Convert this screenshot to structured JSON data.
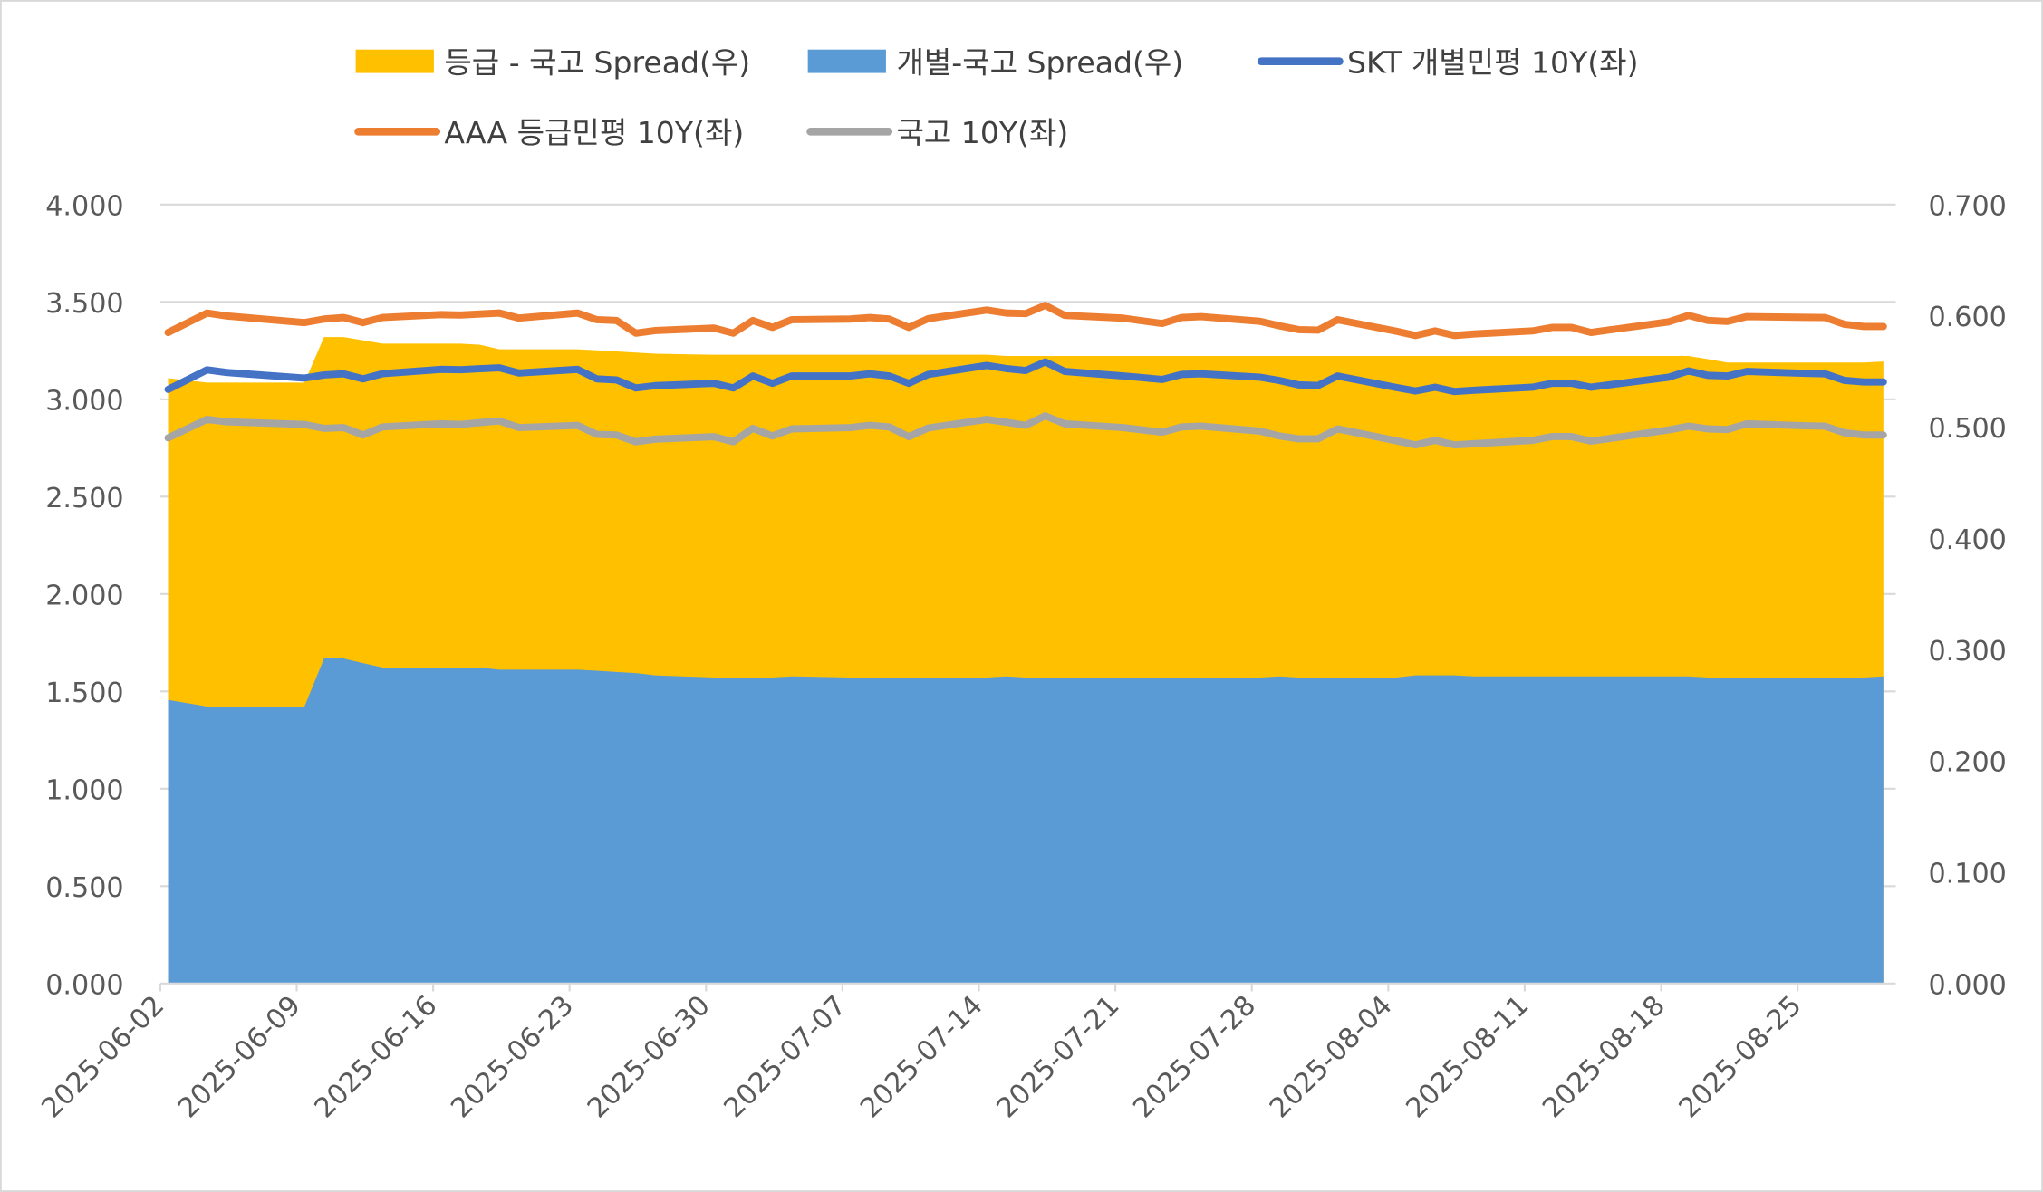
{
  "chart_data": {
    "type": "line+area",
    "title": "",
    "xlabel": "",
    "ylabel_left": "",
    "ylabel_right": "",
    "legend_position": "top",
    "grid": true,
    "y_left": {
      "range": [
        0,
        4
      ],
      "ticks": [
        "0.000",
        "0.500",
        "1.000",
        "1.500",
        "2.000",
        "2.500",
        "3.000",
        "3.500",
        "4.000"
      ]
    },
    "y_right": {
      "range": [
        0,
        0.7
      ],
      "ticks": [
        "0.000",
        "0.100",
        "0.200",
        "0.300",
        "0.400",
        "0.500",
        "0.600",
        "0.700"
      ]
    },
    "x_ticks": [
      "2025-06-02",
      "2025-06-09",
      "2025-06-16",
      "2025-06-23",
      "2025-06-30",
      "2025-07-07",
      "2025-07-14",
      "2025-07-21",
      "2025-07-28",
      "2025-08-04",
      "2025-08-11",
      "2025-08-18",
      "2025-08-25"
    ],
    "dates": [
      "2025-06-02",
      "2025-06-04",
      "2025-06-05",
      "2025-06-09",
      "2025-06-10",
      "2025-06-11",
      "2025-06-12",
      "2025-06-13",
      "2025-06-16",
      "2025-06-17",
      "2025-06-18",
      "2025-06-19",
      "2025-06-20",
      "2025-06-23",
      "2025-06-24",
      "2025-06-25",
      "2025-06-26",
      "2025-06-27",
      "2025-06-30",
      "2025-07-01",
      "2025-07-02",
      "2025-07-03",
      "2025-07-04",
      "2025-07-07",
      "2025-07-08",
      "2025-07-09",
      "2025-07-10",
      "2025-07-11",
      "2025-07-14",
      "2025-07-15",
      "2025-07-16",
      "2025-07-17",
      "2025-07-18",
      "2025-07-21",
      "2025-07-22",
      "2025-07-23",
      "2025-07-24",
      "2025-07-25",
      "2025-07-28",
      "2025-07-29",
      "2025-07-30",
      "2025-07-31",
      "2025-08-01",
      "2025-08-04",
      "2025-08-05",
      "2025-08-06",
      "2025-08-07",
      "2025-08-08",
      "2025-08-11",
      "2025-08-12",
      "2025-08-13",
      "2025-08-14",
      "2025-08-18",
      "2025-08-19",
      "2025-08-20",
      "2025-08-21",
      "2025-08-22",
      "2025-08-25",
      "2025-08-26",
      "2025-08-27",
      "2025-08-28",
      "2025-08-29"
    ],
    "series": [
      {
        "name": "등급 - 국고 Spread(우)",
        "kind": "area",
        "axis": "right",
        "color": "#FFC000",
        "values": [
          0.544,
          0.54,
          0.54,
          0.54,
          0.581,
          0.581,
          0.578,
          0.575,
          0.575,
          0.575,
          0.574,
          0.57,
          0.57,
          0.57,
          0.569,
          0.568,
          0.567,
          0.566,
          0.565,
          0.565,
          0.565,
          0.565,
          0.565,
          0.565,
          0.565,
          0.565,
          0.565,
          0.565,
          0.565,
          0.564,
          0.564,
          0.564,
          0.564,
          0.564,
          0.564,
          0.564,
          0.564,
          0.564,
          0.564,
          0.564,
          0.564,
          0.564,
          0.564,
          0.564,
          0.564,
          0.564,
          0.564,
          0.564,
          0.564,
          0.564,
          0.564,
          0.564,
          0.564,
          0.564,
          0.561,
          0.558,
          0.558,
          0.558,
          0.558,
          0.558,
          0.558,
          0.559
        ]
      },
      {
        "name": "개별-국고 Spread(우)",
        "kind": "area",
        "axis": "right",
        "color": "#5B9BD5",
        "values": [
          0.255,
          0.249,
          0.249,
          0.249,
          0.292,
          0.292,
          0.288,
          0.284,
          0.284,
          0.284,
          0.284,
          0.282,
          0.282,
          0.282,
          0.281,
          0.28,
          0.279,
          0.277,
          0.275,
          0.275,
          0.275,
          0.275,
          0.276,
          0.275,
          0.275,
          0.275,
          0.275,
          0.275,
          0.275,
          0.276,
          0.275,
          0.275,
          0.275,
          0.275,
          0.275,
          0.275,
          0.275,
          0.275,
          0.275,
          0.276,
          0.275,
          0.275,
          0.275,
          0.275,
          0.277,
          0.277,
          0.277,
          0.276,
          0.276,
          0.276,
          0.276,
          0.276,
          0.276,
          0.276,
          0.275,
          0.275,
          0.275,
          0.275,
          0.275,
          0.275,
          0.275,
          0.276
        ]
      },
      {
        "name": "SKT 개별민평 10Y(좌)",
        "kind": "line",
        "axis": "left",
        "color": "#4472C4",
        "values": [
          3.051,
          3.151,
          3.138,
          3.109,
          3.125,
          3.131,
          3.105,
          3.132,
          3.154,
          3.152,
          3.157,
          3.162,
          3.135,
          3.154,
          3.105,
          3.1,
          3.058,
          3.07,
          3.082,
          3.058,
          3.12,
          3.082,
          3.12,
          3.12,
          3.131,
          3.12,
          3.082,
          3.128,
          3.174,
          3.158,
          3.148,
          3.192,
          3.143,
          3.12,
          3.111,
          3.102,
          3.128,
          3.131,
          3.114,
          3.097,
          3.074,
          3.071,
          3.12,
          3.061,
          3.043,
          3.062,
          3.04,
          3.047,
          3.062,
          3.082,
          3.082,
          3.062,
          3.114,
          3.146,
          3.123,
          3.12,
          3.143,
          3.133,
          3.131,
          3.097,
          3.089,
          3.089
        ]
      },
      {
        "name": "AAA 등급민평 10Y(좌)",
        "kind": "line",
        "axis": "left",
        "color": "#ED7D31",
        "values": [
          3.343,
          3.443,
          3.428,
          3.394,
          3.412,
          3.42,
          3.394,
          3.42,
          3.435,
          3.433,
          3.438,
          3.443,
          3.417,
          3.443,
          3.409,
          3.405,
          3.34,
          3.353,
          3.366,
          3.34,
          3.405,
          3.369,
          3.409,
          3.412,
          3.42,
          3.412,
          3.369,
          3.414,
          3.458,
          3.443,
          3.44,
          3.482,
          3.431,
          3.417,
          3.403,
          3.389,
          3.42,
          3.425,
          3.401,
          3.378,
          3.358,
          3.355,
          3.409,
          3.35,
          3.328,
          3.351,
          3.328,
          3.336,
          3.351,
          3.369,
          3.369,
          3.343,
          3.398,
          3.431,
          3.405,
          3.4,
          3.425,
          3.421,
          3.42,
          3.385,
          3.374,
          3.374
        ]
      },
      {
        "name": "국고 10Y(좌)",
        "kind": "line",
        "axis": "left",
        "color": "#A5A5A5",
        "values": [
          2.802,
          2.897,
          2.884,
          2.871,
          2.851,
          2.855,
          2.817,
          2.858,
          2.874,
          2.871,
          2.88,
          2.889,
          2.855,
          2.866,
          2.82,
          2.817,
          2.782,
          2.795,
          2.808,
          2.782,
          2.851,
          2.812,
          2.848,
          2.855,
          2.866,
          2.858,
          2.808,
          2.853,
          2.897,
          2.882,
          2.866,
          2.915,
          2.874,
          2.855,
          2.843,
          2.831,
          2.858,
          2.862,
          2.837,
          2.812,
          2.797,
          2.797,
          2.848,
          2.787,
          2.766,
          2.789,
          2.766,
          2.772,
          2.789,
          2.809,
          2.809,
          2.785,
          2.843,
          2.862,
          2.848,
          2.845,
          2.874,
          2.864,
          2.862,
          2.828,
          2.817,
          2.817
        ]
      }
    ]
  }
}
